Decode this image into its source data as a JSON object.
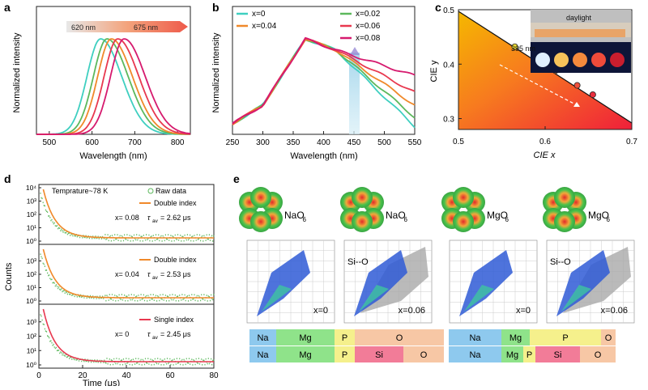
{
  "panels": {
    "a": {
      "letter": "a",
      "xlabel": "Wavelength (nm)",
      "ylabel": "Normalized intensity",
      "arrow_start": "620 nm",
      "arrow_end": "675 nm",
      "xticks": [
        "500",
        "600",
        "700",
        "800"
      ]
    },
    "b": {
      "letter": "b",
      "xlabel": "Wavelength (nm)",
      "ylabel": "Normalized intensity",
      "xticks": [
        "250",
        "300",
        "350",
        "400",
        "450",
        "500",
        "550"
      ]
    },
    "c": {
      "letter": "c",
      "xlabel": "CIE x",
      "ylabel": "CIE y",
      "xticks": [
        "0.5",
        "0.6",
        "0.7"
      ],
      "yticks": [
        "0.3",
        "0.4",
        "0.5"
      ],
      "photo_label_1": "daylight",
      "photo_label_2": "395 nm"
    },
    "d": {
      "letter": "d",
      "ylabel": "Counts",
      "xlabel_partial": "Time (μs)",
      "xticks": [
        "0",
        "20",
        "40",
        "60",
        "80"
      ],
      "header": "Temprature~78 K",
      "raw_label": "Raw data",
      "rows": [
        {
          "fit": "Double index",
          "x": "x= 0.08",
          "tau_sym": "τ",
          "tau_sub": "av",
          "tau_val": "= 2.62  μs"
        },
        {
          "fit": "Double index",
          "x": "x= 0.04",
          "tau_sym": "τ",
          "tau_sub": "av",
          "tau_val": "= 2.53  μs"
        },
        {
          "fit": "Single index",
          "x": "x= 0",
          "tau_sym": "τ",
          "tau_sub": "av",
          "tau_val": "= 2.45  μs"
        }
      ],
      "yticks": [
        "10⁰",
        "10¹",
        "10²",
        "10³",
        "10⁴"
      ]
    },
    "e": {
      "letter": "e",
      "orbitals": [
        {
          "label": "NaO",
          "sub": "6"
        },
        {
          "label": "NaO",
          "sub": "6"
        },
        {
          "label": "MgO",
          "sub": "6"
        },
        {
          "label": "MgO",
          "sub": "6"
        }
      ],
      "plots": [
        {
          "x": "x=0",
          "tag": ""
        },
        {
          "x": "x=0.06",
          "tag": "Si--O"
        },
        {
          "x": "x=0",
          "tag": ""
        },
        {
          "x": "x=0.06",
          "tag": "Si--O"
        }
      ],
      "bars": {
        "left_top": [
          "Na",
          "Mg",
          "P",
          "O"
        ],
        "left_bot": [
          "Na",
          "Mg",
          "P",
          "Si",
          "O"
        ],
        "right_top": [
          "Na",
          "Mg",
          "P",
          "O"
        ],
        "right_bot": [
          "Na",
          "Mg",
          "P",
          "Si",
          "O"
        ]
      }
    }
  },
  "legend_b": [
    "x=0",
    "x=0.02",
    "x=0.04",
    "x=0.06",
    "x=0.08"
  ],
  "series_colors": {
    "x=0": "#3ecfc0",
    "x=0.02": "#5cb85c",
    "x=0.04": "#f0892a",
    "x=0.06": "#e8384f",
    "x=0.08": "#d61a6e"
  },
  "chart_data": [
    {
      "type": "line",
      "panel": "a",
      "xlabel": "Wavelength (nm)",
      "ylabel": "Normalized intensity",
      "xlim": [
        470,
        830
      ],
      "series": [
        {
          "name": "x=0",
          "peak": 620,
          "values_desc": "gaussian-like emission"
        },
        {
          "name": "x=0.02",
          "peak": 635
        },
        {
          "name": "x=0.04",
          "peak": 645
        },
        {
          "name": "x=0.06",
          "peak": 660
        },
        {
          "name": "x=0.08",
          "peak": 675
        }
      ]
    },
    {
      "type": "line",
      "panel": "b",
      "xlabel": "Wavelength (nm)",
      "ylabel": "Normalized intensity",
      "xlim": [
        250,
        550
      ],
      "series": [
        {
          "name": "x=0"
        },
        {
          "name": "x=0.02"
        },
        {
          "name": "x=0.04"
        },
        {
          "name": "x=0.06"
        },
        {
          "name": "x=0.08"
        }
      ]
    },
    {
      "type": "scatter",
      "panel": "c",
      "xlabel": "CIE x",
      "ylabel": "CIE y",
      "xlim": [
        0.5,
        0.7
      ],
      "ylim": [
        0.28,
        0.5
      ],
      "points": [
        [
          0.565,
          0.432
        ],
        [
          0.597,
          0.402
        ],
        [
          0.612,
          0.388
        ],
        [
          0.637,
          0.361
        ],
        [
          0.655,
          0.344
        ]
      ]
    },
    {
      "type": "scatter",
      "panel": "d",
      "ylabel": "Counts",
      "xlim": [
        0,
        80
      ]
    }
  ]
}
